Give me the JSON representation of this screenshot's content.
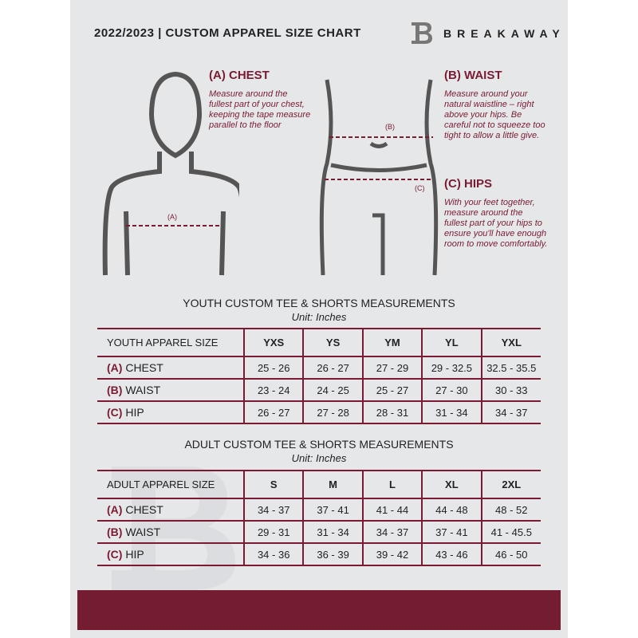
{
  "header": {
    "title": "2022/2023  |  CUSTOM APPAREL SIZE CHART",
    "brand": "BREAKAWAY"
  },
  "chest": {
    "title": "(A) CHEST",
    "desc": "Measure around the fullest part of your chest, keeping the tape measure parallel to the floor",
    "marker": "(A)"
  },
  "waist": {
    "title": "(B) WAIST",
    "desc": "Measure around your natural waistline – right above your hips. Be careful not to squeeze too tight to allow a little give.",
    "marker": "(B)"
  },
  "hips": {
    "title": "(C) HIPS",
    "desc": "With your feet together, measure around the fullest part of your hips to ensure you'll have enough room to move comfortably.",
    "marker": "(C)"
  },
  "youth": {
    "title": "YOUTH CUSTOM TEE & SHORTS MEASUREMENTS",
    "unit": "Unit: Inches",
    "header": [
      "YOUTH APPAREL SIZE",
      "YXS",
      "YS",
      "YM",
      "YL",
      "YXL"
    ],
    "rows": [
      {
        "letter": "(A)",
        "label": "CHEST",
        "values": [
          "25 - 26",
          "26 - 27",
          "27 - 29",
          "29 - 32.5",
          "32.5 - 35.5"
        ]
      },
      {
        "letter": "(B)",
        "label": "WAIST",
        "values": [
          "23 - 24",
          "24 - 25",
          "25 - 27",
          "27 - 30",
          "30 - 33"
        ]
      },
      {
        "letter": "(C)",
        "label": "HIP",
        "values": [
          "26 - 27",
          "27 - 28",
          "28 - 31",
          "31 - 34",
          "34 - 37"
        ]
      }
    ]
  },
  "adult": {
    "title": "ADULT CUSTOM TEE & SHORTS MEASUREMENTS",
    "unit": "Unit: Inches",
    "header": [
      "ADULT APPAREL SIZE",
      "S",
      "M",
      "L",
      "XL",
      "2XL"
    ],
    "rows": [
      {
        "letter": "(A)",
        "label": "CHEST",
        "values": [
          "34 - 37",
          "37 - 41",
          "41 - 44",
          "44 - 48",
          "48 - 52"
        ]
      },
      {
        "letter": "(B)",
        "label": "WAIST",
        "values": [
          "29 - 31",
          "31 - 34",
          "34 - 37",
          "37 - 41",
          "41 - 45.5"
        ]
      },
      {
        "letter": "(C)",
        "label": "HIP",
        "values": [
          "34 - 36",
          "36 - 39",
          "39 - 42",
          "43 - 46",
          "46 - 50"
        ]
      }
    ]
  },
  "colors": {
    "accent": "#7a1b33",
    "band": "#741c30",
    "background": "#e6e7e9"
  }
}
